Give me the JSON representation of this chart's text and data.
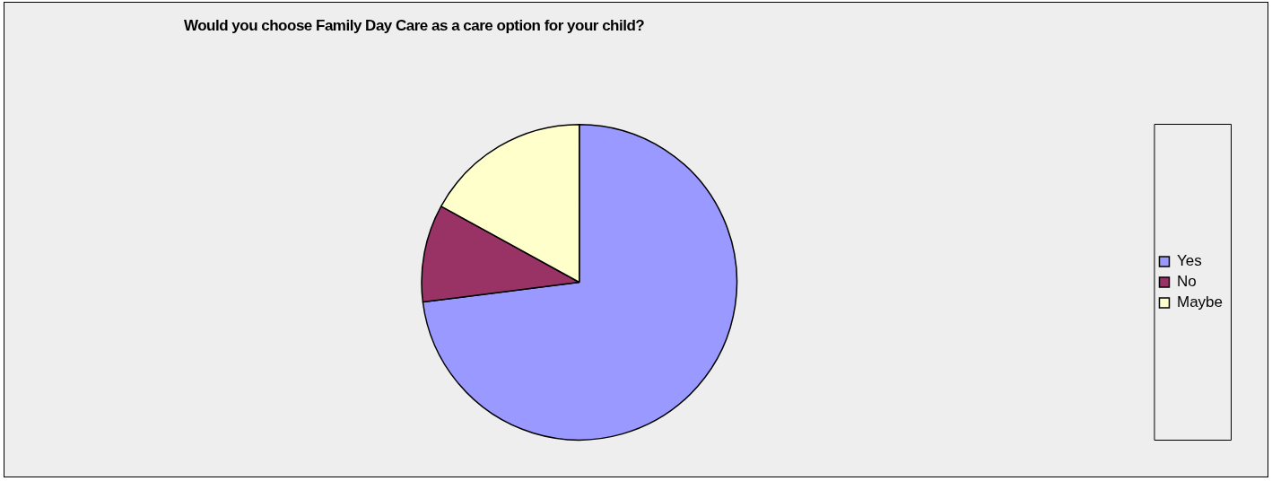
{
  "chart_data": {
    "type": "pie",
    "title": "Would you choose Family Day Care as a care option for your child?",
    "categories": [
      "Yes",
      "No",
      "Maybe"
    ],
    "values": [
      73,
      10,
      17
    ],
    "colors": [
      "#9999ff",
      "#993366",
      "#ffffcc"
    ],
    "legend": "right"
  }
}
